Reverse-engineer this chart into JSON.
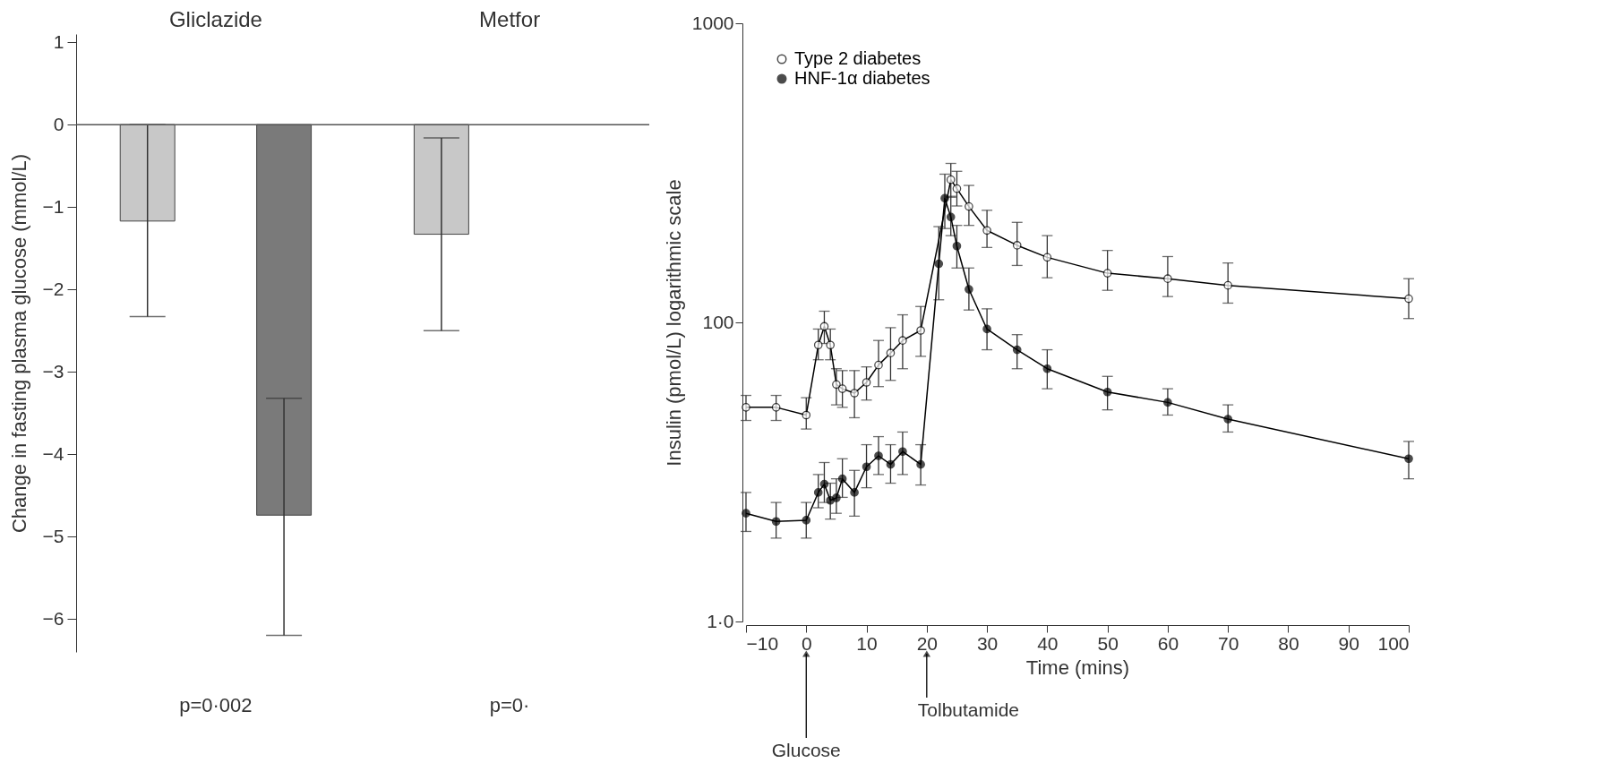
{
  "chart_data": [
    {
      "type": "bar",
      "categories": [
        "Gliclazide",
        "Metfor"
      ],
      "ylabel": "Change in fasting plasma glucose (mmol/L)",
      "ylim": [
        -6.4,
        1.1
      ],
      "yticks": [
        1,
        0,
        -1,
        -2,
        -3,
        -4,
        -5,
        -6
      ],
      "grid": false,
      "series": [
        {
          "color": "#c8c8c8",
          "values": [
            -1.17,
            -1.33
          ],
          "errors": [
            [
              -2.33,
              0
            ],
            [
              -2.5,
              -0.16
            ]
          ]
        },
        {
          "color": "#7a7a7a",
          "values": [
            -4.74,
            null
          ],
          "errors": [
            [
              -6.2,
              -3.32
            ],
            null
          ]
        }
      ],
      "ref_lines": [
        {
          "axis": "y",
          "value": 0
        }
      ],
      "annotations": [
        "p=0·002",
        "p=0·"
      ]
    },
    {
      "type": "line",
      "xlabel": "Time (mins)",
      "ylabel": "Insulin (pmol/L) logarithmic scale",
      "log": "y",
      "xlim": [
        -10,
        100
      ],
      "xticks": [
        -10,
        0,
        10,
        20,
        30,
        40,
        50,
        60,
        70,
        80,
        90,
        100
      ],
      "ylim": [
        10,
        1000
      ],
      "yticks": [
        {
          "value": 10,
          "label": "1·0"
        },
        100,
        1000
      ],
      "grid": false,
      "legend": "top left",
      "marker": "circle",
      "line_style": "solid",
      "series": [
        {
          "name": "Type 2 diabetes",
          "color": "#ffffff",
          "x": [
            -10,
            -5,
            0,
            2,
            3,
            4,
            5,
            6,
            8,
            10,
            12,
            14,
            16,
            19,
            24,
            25,
            27,
            30,
            35,
            40,
            50,
            60,
            70,
            100
          ],
          "values": [
            52,
            52,
            49,
            84,
            97,
            84,
            62,
            60,
            58,
            63,
            72,
            79,
            87,
            94,
            300,
            280,
            244,
            203,
            181,
            165,
            146,
            140,
            133,
            120
          ],
          "errors": [
            [
              47,
              57
            ],
            [
              47,
              57
            ],
            [
              44,
              56
            ],
            [
              75,
              95
            ],
            [
              85,
              109
            ],
            [
              75,
              95
            ],
            [
              53,
              70
            ],
            [
              52,
              69
            ],
            [
              48,
              69
            ],
            [
              55,
              71
            ],
            [
              61,
              87
            ],
            [
              64,
              96
            ],
            [
              70,
              106
            ],
            [
              77,
              113
            ],
            [
              262,
              340
            ],
            [
              245,
              320
            ],
            [
              211,
              287
            ],
            [
              178,
              237
            ],
            [
              155,
              216
            ],
            [
              141,
              195
            ],
            [
              128,
              174
            ],
            [
              122,
              166
            ],
            [
              116,
              158
            ],
            [
              103,
              140
            ]
          ]
        },
        {
          "name": "HNF-1α diabetes",
          "color": "#000000",
          "x": [
            -10,
            -5,
            0,
            2,
            3,
            4,
            5,
            6,
            8,
            10,
            12,
            14,
            16,
            19,
            22,
            23,
            24,
            25,
            27,
            30,
            35,
            40,
            50,
            60,
            70,
            100
          ],
          "values": [
            23,
            21.6,
            21.8,
            27,
            28.8,
            25.4,
            25.9,
            30,
            27,
            32.9,
            35.8,
            33.5,
            37,
            33.5,
            157,
            260,
            225,
            180,
            129,
            95,
            81,
            70,
            58.5,
            54,
            47.5,
            35
          ],
          "errors": [
            [
              20,
              27
            ],
            [
              19,
              25
            ],
            [
              19,
              25
            ],
            [
              24,
              31
            ],
            [
              25,
              34
            ],
            [
              22,
              29
            ],
            [
              23,
              30
            ],
            [
              26,
              35
            ],
            [
              22.5,
              32
            ],
            [
              28,
              39
            ],
            [
              31,
              41.5
            ],
            [
              29,
              39
            ],
            [
              31,
              43
            ],
            [
              28.6,
              39
            ],
            [
              119,
              209
            ],
            [
              206,
              313
            ],
            [
              195,
              264
            ],
            [
              152,
              211
            ],
            [
              110,
              152
            ],
            [
              81,
              111
            ],
            [
              70,
              91
            ],
            [
              60,
              81
            ],
            [
              51,
              66
            ],
            [
              49,
              60
            ],
            [
              43,
              53
            ],
            [
              30,
              40
            ]
          ]
        }
      ],
      "annotations": [
        "Glucose",
        "Tolbutamide"
      ]
    }
  ]
}
